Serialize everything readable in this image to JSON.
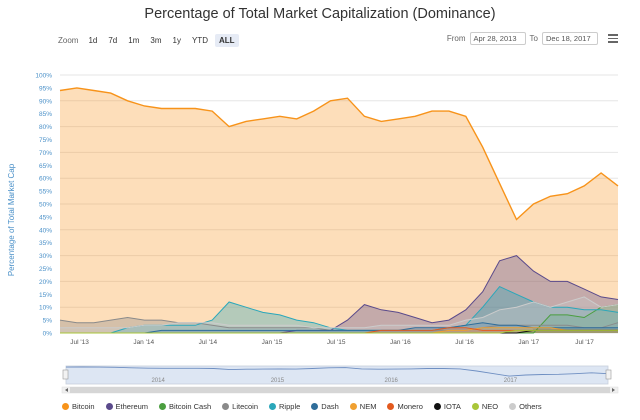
{
  "chart_data": {
    "type": "area",
    "title": "Percentage of Total Market Capitalization (Dominance)",
    "ylabel": "Percentage of Total Market Cap",
    "xlabel": "",
    "ylim": [
      0,
      100
    ],
    "yticks": [
      "0%",
      "5%",
      "10%",
      "15%",
      "20%",
      "25%",
      "30%",
      "35%",
      "40%",
      "45%",
      "50%",
      "55%",
      "60%",
      "65%",
      "70%",
      "75%",
      "80%",
      "85%",
      "90%",
      "95%",
      "100%"
    ],
    "xticks": [
      "Jul '13",
      "Jan '14",
      "Jul '14",
      "Jan '15",
      "Jul '15",
      "Jan '16",
      "Jul '16",
      "Jan '17",
      "Jul '17"
    ],
    "navigator_ticks": [
      "2014",
      "2015",
      "2016",
      "2017"
    ],
    "x": [
      "2013-04-28",
      "2013-06",
      "2013-08",
      "2013-10",
      "2013-12",
      "2014-02",
      "2014-04",
      "2014-06",
      "2014-08",
      "2014-10",
      "2014-12",
      "2015-02",
      "2015-04",
      "2015-06",
      "2015-08",
      "2015-10",
      "2015-12",
      "2016-02",
      "2016-04",
      "2016-06",
      "2016-08",
      "2016-10",
      "2016-12",
      "2017-02",
      "2017-03",
      "2017-04",
      "2017-05",
      "2017-06",
      "2017-07",
      "2017-08",
      "2017-09",
      "2017-10",
      "2017-11",
      "2017-12-18"
    ],
    "series": [
      {
        "name": "Bitcoin",
        "color": "#f7931a",
        "values": [
          94,
          95,
          94,
          93,
          90,
          88,
          87,
          87,
          87,
          86,
          80,
          82,
          83,
          84,
          83,
          86,
          90,
          91,
          84,
          82,
          83,
          84,
          86,
          86,
          84,
          72,
          58,
          44,
          50,
          53,
          54,
          57,
          62,
          57
        ]
      },
      {
        "name": "Ethereum",
        "color": "#5a4a8b",
        "values": [
          0,
          0,
          0,
          0,
          0,
          0,
          0,
          0,
          0,
          0,
          0,
          0,
          0,
          0,
          1,
          1,
          1,
          5,
          11,
          9,
          8,
          6,
          4,
          5,
          9,
          16,
          28,
          30,
          24,
          20,
          20,
          17,
          14,
          13
        ]
      },
      {
        "name": "Bitcoin Cash",
        "color": "#4a9e3f",
        "values": [
          0,
          0,
          0,
          0,
          0,
          0,
          0,
          0,
          0,
          0,
          0,
          0,
          0,
          0,
          0,
          0,
          0,
          0,
          0,
          0,
          0,
          0,
          0,
          0,
          0,
          0,
          0,
          0,
          0,
          7,
          7,
          6,
          10,
          11
        ]
      },
      {
        "name": "Litecoin",
        "color": "#8a8a8a",
        "values": [
          5,
          4,
          4,
          5,
          6,
          5,
          5,
          4,
          4,
          3,
          2,
          2,
          2,
          2,
          2,
          2,
          1,
          1,
          1,
          1,
          1,
          1,
          1,
          1,
          1,
          2,
          3,
          3,
          3,
          3,
          3,
          2,
          2,
          4
        ]
      },
      {
        "name": "Ripple",
        "color": "#2aa7ba",
        "values": [
          0,
          0,
          0,
          0,
          2,
          3,
          3,
          3,
          3,
          5,
          12,
          10,
          8,
          7,
          5,
          4,
          2,
          1,
          1,
          1,
          1,
          1,
          1,
          2,
          3,
          10,
          18,
          15,
          12,
          10,
          10,
          9,
          9,
          8
        ]
      },
      {
        "name": "Dash",
        "color": "#2f6d9a",
        "values": [
          0,
          0,
          0,
          0,
          0,
          0,
          1,
          1,
          1,
          1,
          1,
          1,
          1,
          1,
          1,
          1,
          1,
          1,
          1,
          1,
          1,
          2,
          2,
          2,
          3,
          4,
          3,
          3,
          2,
          2,
          2,
          2,
          2,
          2
        ]
      },
      {
        "name": "NEM",
        "color": "#f0a030",
        "values": [
          0,
          0,
          0,
          0,
          0,
          0,
          0,
          0,
          0,
          0,
          0,
          0,
          0,
          0,
          0,
          0,
          0,
          0,
          0,
          0,
          0,
          0,
          0,
          1,
          1,
          2,
          2,
          2,
          2,
          2,
          1,
          1,
          1,
          1
        ]
      },
      {
        "name": "Monero",
        "color": "#e35a1f",
        "values": [
          0,
          0,
          0,
          0,
          0,
          0,
          0,
          0,
          0,
          0,
          0,
          0,
          0,
          0,
          0,
          0,
          0,
          0,
          0,
          1,
          1,
          1,
          1,
          2,
          2,
          1,
          1,
          1,
          1,
          1,
          1,
          1,
          1,
          1
        ]
      },
      {
        "name": "IOTA",
        "color": "#111111",
        "values": [
          0,
          0,
          0,
          0,
          0,
          0,
          0,
          0,
          0,
          0,
          0,
          0,
          0,
          0,
          0,
          0,
          0,
          0,
          0,
          0,
          0,
          0,
          0,
          0,
          0,
          0,
          0,
          0,
          1,
          1,
          1,
          1,
          1,
          1
        ]
      },
      {
        "name": "NEO",
        "color": "#a9c639",
        "values": [
          0,
          0,
          0,
          0,
          0,
          0,
          0,
          0,
          0,
          0,
          0,
          0,
          0,
          0,
          0,
          0,
          0,
          0,
          0,
          0,
          0,
          0,
          0,
          0,
          0,
          0,
          0,
          1,
          1,
          1,
          1,
          1,
          1,
          1
        ]
      },
      {
        "name": "Others",
        "color": "#cccccc",
        "values": [
          2,
          2,
          2,
          2,
          2,
          3,
          3,
          4,
          4,
          4,
          3,
          3,
          3,
          3,
          3,
          2,
          2,
          2,
          2,
          3,
          3,
          3,
          3,
          3,
          5,
          6,
          9,
          10,
          12,
          10,
          12,
          14,
          10,
          11
        ]
      }
    ],
    "grid": true,
    "legend_position": "bottom"
  },
  "toolbar": {
    "zoom_label": "Zoom",
    "zoom_buttons": [
      "1d",
      "7d",
      "1m",
      "3m",
      "1y",
      "YTD",
      "ALL"
    ],
    "active_zoom": "ALL",
    "from_label": "From",
    "from_value": "Apr 28, 2013",
    "to_label": "To",
    "to_value": "Dec 18, 2017"
  },
  "icons": {
    "menu": "hamburger-menu-icon"
  }
}
